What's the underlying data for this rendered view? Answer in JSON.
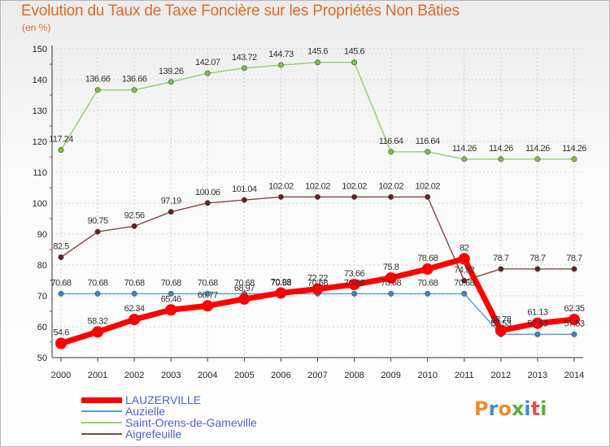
{
  "title": "Evolution du Taux de Taxe Foncière sur les Propriétés Non Bâties",
  "units": "(en %)",
  "brand": {
    "text": "Proxiti",
    "colors": [
      "#f28c28",
      "#3a8fd6",
      "#f28c28",
      "#5bb03a",
      "#3a8fd6",
      "#e14f4f",
      "#5bb03a"
    ]
  },
  "chart_data": {
    "type": "line",
    "title": "Evolution du Taux de Taxe Foncière sur les Propriétés Non Bâties",
    "ylabel": "(en %)",
    "xlabel": "",
    "ylim": [
      50,
      150
    ],
    "yticks": [
      50,
      60,
      70,
      80,
      90,
      100,
      110,
      120,
      130,
      140,
      150
    ],
    "categories": [
      "2000",
      "2001",
      "2002",
      "2003",
      "2004",
      "2005",
      "2006",
      "2007",
      "2008",
      "2009",
      "2010",
      "2011",
      "2012",
      "2013",
      "2014"
    ],
    "grid": true,
    "legend_position": "bottom-left",
    "series": [
      {
        "name": "Saint-Orens-de-Gameville",
        "color": "#90d070",
        "marker": "#78c040",
        "values": [
          117.24,
          136.66,
          136.66,
          139.26,
          142.07,
          143.72,
          144.73,
          145.6,
          145.6,
          116.64,
          116.64,
          114.26,
          114.26,
          114.26,
          114.26
        ],
        "labels": [
          "117.24",
          "136.66",
          "136.66",
          "139.26",
          "142.07",
          "143.72",
          "144.73",
          "145.6",
          "145.6",
          "116.64",
          "116.64",
          "114.26",
          "114.26",
          "114.26",
          "114.26"
        ]
      },
      {
        "name": "Aigrefeuille",
        "color": "#884444",
        "marker": "#6a1e1e",
        "values": [
          82.5,
          90.75,
          92.56,
          97.19,
          100.06,
          101.04,
          102.02,
          102.02,
          102.02,
          102.02,
          102.02,
          74.92,
          78.7,
          78.7,
          78.7
        ],
        "labels": [
          "82.5",
          "90.75",
          "92.56",
          "97.19",
          "100.06",
          "101.04",
          "102.02",
          "102.02",
          "102.02",
          "102.02",
          "102.02",
          "74.92",
          "78.7",
          "78.7",
          "78.7"
        ]
      },
      {
        "name": "Auzielle",
        "color": "#5a9ad6",
        "marker": "#3a82cc",
        "values": [
          70.68,
          70.68,
          70.68,
          70.68,
          70.68,
          70.68,
          70.68,
          70.68,
          70.68,
          70.68,
          70.68,
          70.68,
          57.53,
          57.53,
          57.53
        ],
        "labels": [
          "70.68",
          "70.68",
          "70.68",
          "70.68",
          "70.68",
          "70.68",
          "70.68",
          "70.68",
          "70.68",
          "70.68",
          "70.68",
          "70.68",
          "57.53",
          "57.53",
          "57.53"
        ]
      },
      {
        "name": "LAUZERVILLE",
        "color": "#ff0000",
        "marker": "#ff0000",
        "values": [
          54.6,
          58.32,
          62.34,
          65.46,
          66.77,
          68.97,
          70.93,
          72.22,
          73.66,
          75.8,
          78.68,
          82,
          58.78,
          61.13,
          62.35
        ],
        "labels": [
          "54.6",
          "58.32",
          "62.34",
          "65.46",
          "66.77",
          "68.97",
          "70.93",
          "72.22",
          "73.66",
          "75.8",
          "78.68",
          "82",
          "58.78",
          "61.13",
          "62.35"
        ]
      }
    ],
    "legend": [
      "LAUZERVILLE",
      "Auzielle",
      "Saint-Orens-de-Gameville",
      "Aigrefeuille"
    ]
  }
}
